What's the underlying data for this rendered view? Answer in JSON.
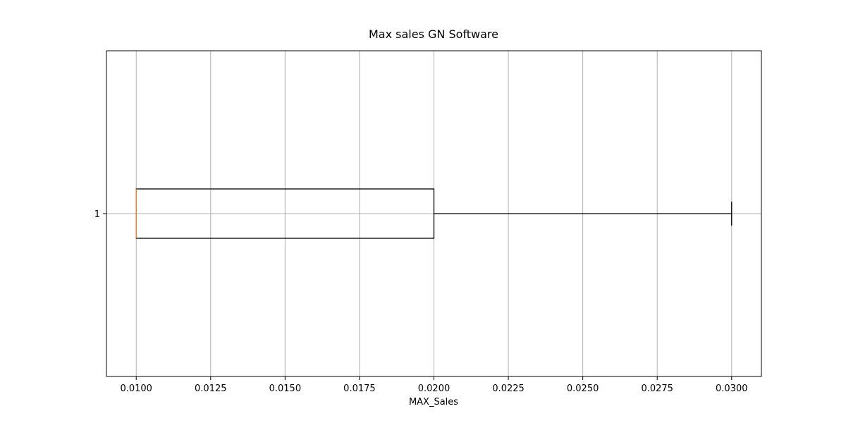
{
  "chart_data": {
    "type": "boxplot",
    "orientation": "horizontal",
    "title": "Max sales GN Software",
    "xlabel": "MAX_Sales",
    "ylabel": "",
    "xlim": [
      0.009,
      0.031
    ],
    "x_ticks": [
      0.01,
      0.0125,
      0.015,
      0.0175,
      0.02,
      0.0225,
      0.025,
      0.0275,
      0.03
    ],
    "x_tick_labels": [
      "0.0100",
      "0.0125",
      "0.0150",
      "0.0175",
      "0.0200",
      "0.0225",
      "0.0250",
      "0.0275",
      "0.0300"
    ],
    "y_tick_labels": [
      "1"
    ],
    "grid": true,
    "boxes": [
      {
        "label": "1",
        "whisker_low": 0.01,
        "q1": 0.01,
        "median": 0.01,
        "q3": 0.02,
        "whisker_high": 0.03
      }
    ],
    "colors": {
      "box": "#000000",
      "median": "#ff7f0e",
      "grid": "#b0b0b0"
    }
  }
}
